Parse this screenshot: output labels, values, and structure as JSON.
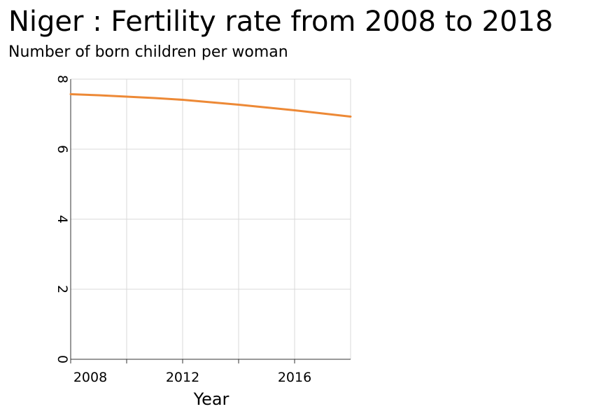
{
  "chart_data": {
    "type": "line",
    "title": "Niger : Fertility rate from 2008 to 2018",
    "subtitle": "Number of born children per woman",
    "xlabel": "Year",
    "ylabel": "",
    "xlim": [
      2008,
      2018
    ],
    "ylim": [
      0,
      8
    ],
    "x_ticks": [
      2008,
      2012,
      2016
    ],
    "x_tick_labels": [
      "2008",
      "2012",
      "2016"
    ],
    "x_minor_ticks": [
      2010,
      2014
    ],
    "y_ticks": [
      0,
      2,
      4,
      6,
      8
    ],
    "y_tick_labels": [
      "0",
      "2",
      "4",
      "6",
      "8"
    ],
    "grid": true,
    "series": [
      {
        "color": "#ed8936",
        "x": [
          2008,
          2009,
          2010,
          2011,
          2012,
          2013,
          2014,
          2015,
          2016,
          2017,
          2018
        ],
        "y": [
          7.57,
          7.54,
          7.5,
          7.46,
          7.41,
          7.34,
          7.27,
          7.19,
          7.11,
          7.02,
          6.93
        ]
      }
    ]
  }
}
